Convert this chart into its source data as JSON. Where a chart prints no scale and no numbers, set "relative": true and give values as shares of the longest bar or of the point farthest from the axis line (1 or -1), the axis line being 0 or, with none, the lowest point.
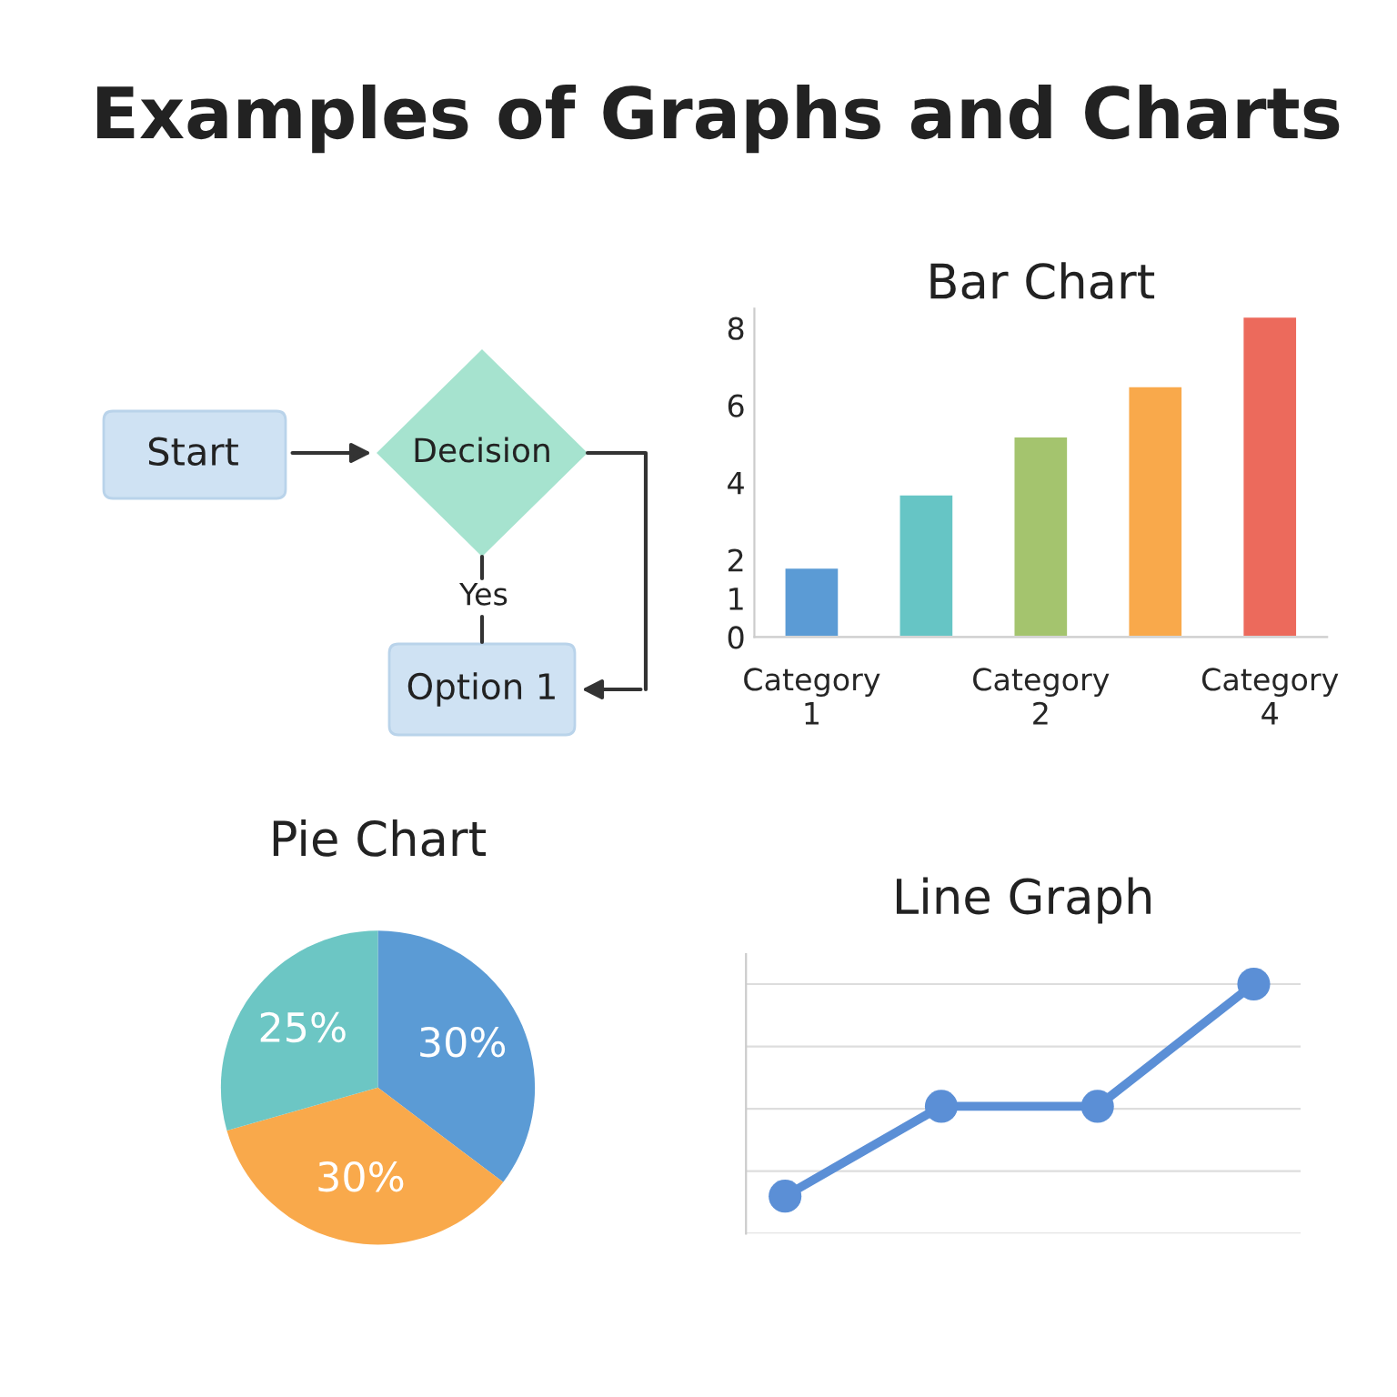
{
  "chart_data": [
    {
      "type": "other",
      "title": "Examples of Graphs and Charts",
      "annotations": [
        "Start",
        "Decision",
        "Yes",
        "Option 1"
      ]
    },
    {
      "type": "bar",
      "title": "Bar Chart",
      "categories": [
        "Category\n1",
        null,
        "Category\n2",
        null,
        "Category\n4"
      ],
      "values": [
        1.8,
        3.7,
        5.2,
        6.5,
        8.3
      ],
      "colors": [
        "#5b9bd5",
        "#66c5c5",
        "#a4c46e",
        "#f9a94b",
        "#ec6a5c"
      ],
      "ylim": [
        0,
        8.5
      ],
      "yticks": [
        0,
        1,
        2,
        4,
        6,
        8
      ],
      "grid": false
    },
    {
      "type": "pie",
      "title": "Pie Chart",
      "categories": [
        null,
        null,
        null
      ],
      "values": [
        30,
        30,
        25
      ],
      "colors": [
        "#5b9bd5",
        "#f9a94b",
        "#6cc6c4"
      ],
      "value_labels": [
        "30%",
        "30%",
        "25%"
      ]
    },
    {
      "type": "line",
      "title": "Line Graph",
      "relative": true,
      "categories": [
        null,
        null,
        null,
        null
      ],
      "series": [
        {
          "color": "#5b8fd6",
          "values": [
            0.15,
            0.51,
            0.51,
            1
          ]
        }
      ],
      "marker": "circle",
      "grid": "y"
    }
  ]
}
